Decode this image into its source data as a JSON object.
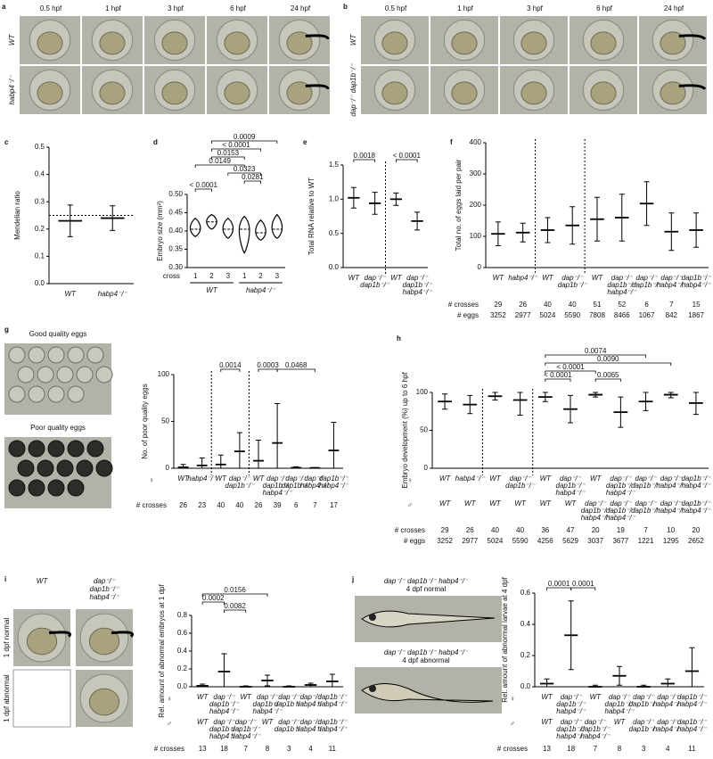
{
  "photos_a": {
    "label": "a",
    "columns": [
      "0.5 hpf",
      "1 hpf",
      "3 hpf",
      "6 hpf",
      "24 hpf"
    ],
    "rows": [
      "WT",
      "habp4⁻/⁻"
    ]
  },
  "photos_b": {
    "label": "b",
    "columns": [
      "0.5 hpf",
      "1 hpf",
      "3 hpf",
      "6 hpf",
      "24 hpf"
    ],
    "rows": [
      "WT",
      "dap⁻/⁻ dap1b⁻/⁻"
    ]
  },
  "photos_g": {
    "captions": [
      "Good quality eggs",
      "Poor quality eggs"
    ]
  },
  "photos_i": {
    "columns": [
      [
        "WT"
      ],
      [
        "dap⁻/⁻",
        "dap1b⁻/⁻",
        "habp4⁻/⁻"
      ]
    ],
    "rows": [
      "1 dpf normal",
      "1 dpf abnormal"
    ]
  },
  "photos_j": {
    "captions": [
      [
        "dap⁻/⁻ dap1b⁻/⁻ habp4⁻/⁻",
        "4 dpf normal"
      ],
      [
        "dap⁻/⁻ dap1b⁻/⁻ habp4⁻/⁻",
        "4 dpf abnormal"
      ]
    ]
  },
  "chart_data": [
    {
      "panel": "c",
      "type": "dot",
      "y_label": "Mendelian ratio",
      "ylim": [
        0,
        0.5
      ],
      "yticks": [
        {
          "value": 0,
          "label": "0.0"
        },
        {
          "value": 0.1,
          "label": "0.1"
        },
        {
          "value": 0.2,
          "label": "0.2"
        },
        {
          "value": 0.3,
          "label": "0.3"
        },
        {
          "value": 0.4,
          "label": "0.4"
        },
        {
          "value": 0.5,
          "label": "0.5"
        }
      ],
      "reference": 0.25,
      "categories": [
        [
          "WT"
        ],
        [
          "habp4⁻/⁻"
        ]
      ],
      "colors": [
        "#111111",
        "#4b4ba6"
      ],
      "values": [
        0.23,
        0.24
      ],
      "errors": [
        0.058,
        0.045
      ]
    },
    {
      "panel": "d",
      "type": "violin",
      "y_label": "Embryo size (mm²)",
      "ylim": [
        0.3,
        0.5
      ],
      "yticks": [
        {
          "value": 0.3,
          "label": "0.30"
        },
        {
          "value": 0.35,
          "label": "0.35"
        },
        {
          "value": 0.4,
          "label": "0.40"
        },
        {
          "value": 0.45,
          "label": "0.45"
        },
        {
          "value": 0.5,
          "label": "0.50"
        }
      ],
      "x_label": "cross",
      "categories": [
        "1",
        "2",
        "3",
        "1",
        "2",
        "3"
      ],
      "groups": [
        "WT",
        "habp4⁻/⁻"
      ],
      "colors": [
        "#111111",
        "#111111",
        "#111111",
        "#4b4ba6",
        "#4b4ba6",
        "#4b4ba6"
      ],
      "values": [
        0.405,
        0.425,
        0.405,
        0.405,
        0.395,
        0.405
      ],
      "extents": [
        [
          0.385,
          0.435
        ],
        [
          0.405,
          0.445
        ],
        [
          0.38,
          0.435
        ],
        [
          0.34,
          0.44
        ],
        [
          0.375,
          0.43
        ],
        [
          0.38,
          0.445
        ]
      ],
      "annotations": [
        "0.0009",
        "< 0.0001",
        "0.0153",
        "0.0149",
        "0.0323",
        "0.0281",
        "< 0.0001"
      ]
    },
    {
      "panel": "e",
      "type": "dot",
      "y_label": "Total RNA relative to WT",
      "ylim": [
        0,
        1.5
      ],
      "yticks": [
        {
          "value": 0,
          "label": "0.0"
        },
        {
          "value": 0.5,
          "label": "0.5"
        },
        {
          "value": 1,
          "label": "1.0"
        },
        {
          "value": 1.5,
          "label": "1.5"
        }
      ],
      "categories": [
        [
          "WT"
        ],
        [
          "dap⁻/⁻",
          "dap1b⁻/⁻"
        ],
        [
          "WT"
        ],
        [
          "dap⁻/⁻",
          "dap1b⁻/⁻",
          "habp4⁻/⁻"
        ]
      ],
      "colors": [
        "#111111",
        "#8cc63f",
        "#111111",
        "#e63222"
      ],
      "values": [
        1.02,
        0.94,
        1.0,
        0.68
      ],
      "errors": [
        0.15,
        0.16,
        0.09,
        0.13
      ],
      "annotations": [
        "0.0018",
        "< 0.0001"
      ]
    },
    {
      "panel": "f",
      "type": "dot",
      "y_label": "Total no. of eggs laid per pair",
      "ylim": [
        0,
        400
      ],
      "yticks": [
        0,
        100,
        200,
        300,
        400
      ],
      "categories": [
        [
          "WT"
        ],
        [
          "habp4⁻/⁻"
        ],
        [
          "WT"
        ],
        [
          "dap⁻/⁻",
          "dap1b⁻/⁻"
        ],
        [
          "WT"
        ],
        [
          "dap⁻/⁻",
          "dap1b⁻/⁻",
          "habp4⁻/⁻"
        ],
        [
          "dap⁻/⁻",
          "dap1b⁻/⁻"
        ],
        [
          "dap⁻/⁻",
          "habp4⁻/⁻"
        ],
        [
          "dap1b⁻/⁻",
          "habp4⁻/⁻"
        ]
      ],
      "colors": [
        "#111111",
        "#4b4ba6",
        "#111111",
        "#8cc63f",
        "#111111",
        "#e63222",
        "#a6d47a",
        "#8fc5e8",
        "#4f95cc"
      ],
      "values": [
        108,
        112,
        120,
        135,
        155,
        160,
        205,
        115,
        120
      ],
      "errors": [
        38,
        30,
        40,
        60,
        70,
        75,
        70,
        60,
        55
      ],
      "counts": [
        {
          "label": "# crosses",
          "values": [
            29,
            26,
            40,
            40,
            51,
            52,
            6,
            7,
            15
          ]
        },
        {
          "label": "# eggs",
          "values": [
            3252,
            2977,
            5024,
            5590,
            7808,
            8466,
            1067,
            842,
            1867
          ]
        }
      ]
    },
    {
      "panel": "g",
      "type": "dot",
      "y_label": "No. of poor quality eggs",
      "ylim": [
        0,
        100
      ],
      "yticks": [
        0,
        50,
        100
      ],
      "female_label": "♀",
      "categories": [
        [
          "WT"
        ],
        [
          "habp4⁻/⁻"
        ],
        [
          "WT"
        ],
        [
          "dap⁻/⁻",
          "dap1b⁻/⁻"
        ],
        [
          "WT"
        ],
        [
          "dap⁻/⁻",
          "dap1b⁻/⁻",
          "habp4⁻/⁻"
        ],
        [
          "dap⁻/⁻",
          "dap1b⁻/⁻"
        ],
        [
          "dap⁻/⁻",
          "habp4⁻/⁻"
        ],
        [
          "dap1b⁻/⁻",
          "habp4⁻/⁻"
        ]
      ],
      "colors": [
        "#111111",
        "#4b4ba6",
        "#111111",
        "#8cc63f",
        "#111111",
        "#e63222",
        "#a6d47a",
        "#8fc5e8",
        "#4f95cc"
      ],
      "values": [
        1,
        3,
        4,
        18,
        8,
        27,
        0.5,
        0.3,
        19
      ],
      "errors": [
        3,
        8,
        10,
        20,
        22,
        42,
        1,
        0.5,
        30
      ],
      "annotations": [
        "0.0014",
        "0.0003",
        "0.0468"
      ],
      "counts": [
        {
          "label": "# crosses",
          "values": [
            26,
            23,
            40,
            40,
            26,
            39,
            6,
            7,
            17
          ]
        }
      ]
    },
    {
      "panel": "h",
      "type": "dot",
      "y_label": "Embryo development (%) up to 6 hpf",
      "ylim": [
        0,
        100
      ],
      "yticks": [
        0,
        50,
        100
      ],
      "female_label": "♀",
      "male_label": "♂",
      "categories": [
        [
          "WT"
        ],
        [
          "habp4⁻/⁻"
        ],
        [
          "WT"
        ],
        [
          "dap⁻/⁻",
          "dap1b⁻/⁻"
        ],
        [
          "WT"
        ],
        [
          "dap⁻/⁻",
          "dap1b⁻/⁻",
          "habp4⁻/⁻"
        ],
        [
          "WT"
        ],
        [
          "dap⁻/⁻",
          "dap1b⁻/⁻",
          "habp4⁻/⁻"
        ],
        [
          "dap⁻/⁻",
          "dap1b⁻/⁻"
        ],
        [
          "dap⁻/⁻",
          "habp4⁻/⁻"
        ],
        [
          "dap1b⁻/⁻",
          "habp4⁻/⁻"
        ]
      ],
      "male": [
        [
          "WT"
        ],
        [
          "WT"
        ],
        [
          "WT"
        ],
        [
          "WT"
        ],
        [
          "WT"
        ],
        [
          "WT"
        ],
        [
          "dap⁻/⁻",
          "dap1b⁻/⁻",
          "habp4⁻/⁻"
        ],
        [
          "dap⁻/⁻",
          "dap1b⁻/⁻",
          "habp4⁻/⁻"
        ],
        [
          "dap⁻/⁻",
          "dap1b⁻/⁻"
        ],
        [
          "dap⁻/⁻",
          "habp4⁻/⁻"
        ],
        [
          "dap1b⁻/⁻",
          "habp4⁻/⁻"
        ]
      ],
      "colors": [
        "#111111",
        "#4b4ba6",
        "#111111",
        "#8cc63f",
        "#111111",
        "#e63222",
        "#9a9a9a",
        "#f08a78",
        "#a6d47a",
        "#8fc5e8",
        "#4f95cc"
      ],
      "values": [
        88,
        84,
        95,
        90,
        94,
        78,
        97,
        74,
        88,
        97,
        86
      ],
      "errors": [
        10,
        12,
        5,
        20,
        6,
        18,
        3,
        20,
        12,
        4,
        15
      ],
      "annotations": [
        "0.0074",
        "0.0090",
        "< 0.0001",
        "< 0.0001",
        "0.0065"
      ],
      "counts": [
        {
          "label": "# crosses",
          "values": [
            29,
            26,
            40,
            40,
            36,
            47,
            20,
            19,
            7,
            10,
            20
          ]
        },
        {
          "label": "# eggs",
          "values": [
            3252,
            2977,
            5024,
            5590,
            4256,
            5629,
            3037,
            3677,
            1221,
            1295,
            2652
          ]
        }
      ]
    },
    {
      "panel": "i",
      "type": "dot",
      "y_label": "Rel. amount of abnormal embryos at 1 dpf",
      "ylim": [
        0,
        0.8
      ],
      "yticks": [
        {
          "value": 0,
          "label": "0.0"
        },
        {
          "value": 0.2,
          "label": "0.2"
        },
        {
          "value": 0.4,
          "label": "0.4"
        },
        {
          "value": 0.6,
          "label": "0.6"
        },
        {
          "value": 0.8,
          "label": "0.8"
        }
      ],
      "female_label": "♀",
      "male_label": "♂",
      "categories": [
        [
          "WT"
        ],
        [
          "dap⁻/⁻",
          "dap1b⁻/⁻",
          "habp4⁻/⁻"
        ],
        [
          "WT"
        ],
        [
          "dap⁻/⁻",
          "dap1b⁻/⁻",
          "habp4⁻/⁻"
        ],
        [
          "dap⁻/⁻",
          "dap1b⁻/⁻"
        ],
        [
          "dap⁻/⁻",
          "habp4⁻/⁻"
        ],
        [
          "dap1b⁻/⁻",
          "habp4⁻/⁻"
        ]
      ],
      "male": [
        [
          "WT"
        ],
        [
          "dap⁻/⁻",
          "dap1b⁻/⁻",
          "habp4⁻/⁻"
        ],
        [
          "dap⁻/⁻",
          "dap1b⁻/⁻",
          "habp4⁻/⁻"
        ],
        [
          "WT"
        ],
        [
          "dap⁻/⁻",
          "dap1b⁻/⁻"
        ],
        [
          "dap⁻/⁻",
          "habp4⁻/⁻"
        ],
        [
          "dap1b⁻/⁻",
          "habp4⁻/⁻"
        ]
      ],
      "colors": [
        "#111111",
        "#e63222",
        "#9a9a9a",
        "#f08a78",
        "#a6d47a",
        "#8fc5e8",
        "#4f95cc"
      ],
      "values": [
        0.01,
        0.17,
        0.0,
        0.07,
        0.0,
        0.02,
        0.06
      ],
      "errors": [
        0.02,
        0.2,
        0.01,
        0.06,
        0.01,
        0.02,
        0.08
      ],
      "annotations": [
        "0.0156",
        "0.0002",
        "0.0082"
      ],
      "counts": [
        {
          "label": "# crosses",
          "values": [
            13,
            18,
            7,
            8,
            3,
            4,
            11
          ]
        }
      ]
    },
    {
      "panel": "j",
      "type": "dot",
      "y_label": "Rel. amount of abnormal larvae at 4 dpf",
      "ylim": [
        0,
        0.6
      ],
      "yticks": [
        {
          "value": 0,
          "label": "0.0"
        },
        {
          "value": 0.2,
          "label": "0.2"
        },
        {
          "value": 0.4,
          "label": "0.4"
        },
        {
          "value": 0.6,
          "label": "0.6"
        }
      ],
      "female_label": "♀",
      "male_label": "♂",
      "categories": [
        [
          "WT"
        ],
        [
          "dap⁻/⁻",
          "dap1b⁻/⁻",
          "habp4⁻/⁻"
        ],
        [
          "WT"
        ],
        [
          "dap⁻/⁻",
          "dap1b⁻/⁻",
          "habp4⁻/⁻"
        ],
        [
          "dap⁻/⁻",
          "dap1b⁻/⁻"
        ],
        [
          "dap⁻/⁻",
          "habp4⁻/⁻"
        ],
        [
          "dap1b⁻/⁻",
          "habp4⁻/⁻"
        ]
      ],
      "male": [
        [
          "WT"
        ],
        [
          "dap⁻/⁻",
          "dap1b⁻/⁻",
          "habp4⁻/⁻"
        ],
        [
          "dap⁻/⁻",
          "dap1b⁻/⁻",
          "habp4⁻/⁻"
        ],
        [
          "WT"
        ],
        [
          "dap⁻/⁻",
          "dap1b⁻/⁻"
        ],
        [
          "dap⁻/⁻",
          "habp4⁻/⁻"
        ],
        [
          "dap1b⁻/⁻",
          "habp4⁻/⁻"
        ]
      ],
      "colors": [
        "#111111",
        "#e63222",
        "#9a9a9a",
        "#f08a78",
        "#a6d47a",
        "#8fc5e8",
        "#4f95cc"
      ],
      "values": [
        0.02,
        0.33,
        0.0,
        0.07,
        0.0,
        0.02,
        0.1
      ],
      "errors": [
        0.03,
        0.22,
        0.01,
        0.06,
        0.01,
        0.03,
        0.15
      ],
      "annotations": [
        "0.0001",
        "0.0001"
      ],
      "counts": [
        {
          "label": "# crosses",
          "values": [
            13,
            18,
            7,
            8,
            3,
            4,
            11
          ]
        }
      ]
    }
  ]
}
